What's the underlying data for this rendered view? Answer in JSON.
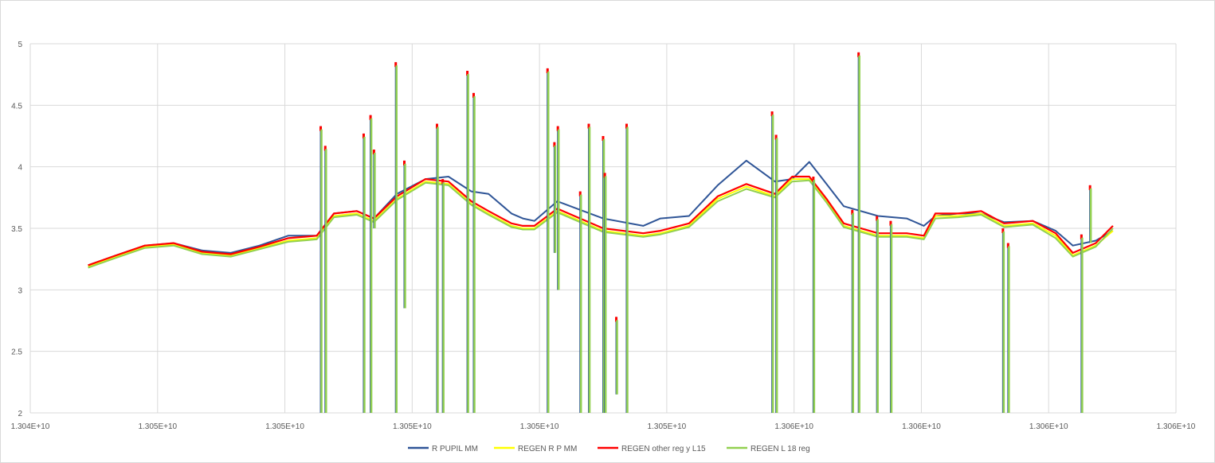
{
  "chart_data": {
    "type": "line",
    "title": "",
    "xlabel": "",
    "ylabel": "",
    "xlim": [
      13040000000,
      13060000000
    ],
    "ylim": [
      2,
      5
    ],
    "grid": true,
    "legend_position": "bottom",
    "x_tick_labels": [
      "1.304E+10",
      "1.305E+10",
      "1.305E+10",
      "1.305E+10",
      "1.305E+10",
      "1.305E+10",
      "1.306E+10",
      "1.306E+10",
      "1.306E+10",
      "1.306E+10"
    ],
    "y_tick_labels": [
      "2",
      "2.5",
      "3",
      "3.5",
      "4",
      "4.5",
      "5"
    ],
    "y_ticks": [
      2,
      2.5,
      3,
      3.5,
      4,
      4.5,
      5
    ],
    "colors": {
      "R PUPIL MM": "#2f5597",
      "REGEN R P MM": "#ffff00",
      "REGEN other reg y L15": "#ff0000",
      "REGEN L 18 reg": "#92d050"
    },
    "series": [
      {
        "name": "R PUPIL MM",
        "x": [
          13041010000,
          13041500000,
          13042000000,
          13042500000,
          13043000000,
          13043500000,
          13044000000,
          13044500000,
          13045000000,
          13045300000,
          13045700000,
          13046000000,
          13046400000,
          13046900000,
          13047300000,
          13047700000,
          13048000000,
          13048400000,
          13048600000,
          13048800000,
          13049200000,
          13049600000,
          13050000000,
          13050700000,
          13051000000,
          13051500000,
          13052000000,
          13052500000,
          13053000000,
          13053300000,
          13053600000,
          13053900000,
          13054200000,
          13054800000,
          13055300000,
          13055600000,
          13055800000,
          13056200000,
          13056600000,
          13057000000,
          13057500000,
          13057900000,
          13058200000,
          13058600000,
          13058900000
        ],
        "y": [
          3.2,
          3.28,
          3.36,
          3.38,
          3.32,
          3.3,
          3.36,
          3.44,
          3.44,
          3.62,
          3.64,
          3.58,
          3.78,
          3.9,
          3.92,
          3.8,
          3.78,
          3.62,
          3.58,
          3.56,
          3.72,
          3.65,
          3.58,
          3.52,
          3.58,
          3.6,
          3.85,
          4.05,
          3.88,
          3.9,
          4.04,
          3.86,
          3.68,
          3.6,
          3.58,
          3.52,
          3.6,
          3.62,
          3.62,
          3.55,
          3.56,
          3.48,
          3.36,
          3.4,
          3.48
        ]
      },
      {
        "name": "REGEN R P MM",
        "x": [
          13041010000,
          13041500000,
          13042000000,
          13042500000,
          13043000000,
          13043500000,
          13044000000,
          13044500000,
          13045000000,
          13045300000,
          13045700000,
          13046000000,
          13046400000,
          13046900000,
          13047300000,
          13047700000,
          13048000000,
          13048400000,
          13048600000,
          13048800000,
          13049200000,
          13049600000,
          13050000000,
          13050700000,
          13051000000,
          13051500000,
          13052000000,
          13052500000,
          13053000000,
          13053300000,
          13053600000,
          13053900000,
          13054200000,
          13054800000,
          13055300000,
          13055600000,
          13055800000,
          13056200000,
          13056600000,
          13057000000,
          13057500000,
          13057900000,
          13058200000,
          13058600000,
          13058900000
        ],
        "y": [
          3.19,
          3.27,
          3.35,
          3.37,
          3.3,
          3.28,
          3.34,
          3.4,
          3.42,
          3.6,
          3.62,
          3.56,
          3.74,
          3.88,
          3.86,
          3.7,
          3.62,
          3.52,
          3.5,
          3.5,
          3.64,
          3.56,
          3.48,
          3.44,
          3.46,
          3.52,
          3.74,
          3.84,
          3.76,
          3.9,
          3.9,
          3.72,
          3.52,
          3.44,
          3.44,
          3.42,
          3.6,
          3.6,
          3.62,
          3.52,
          3.54,
          3.44,
          3.28,
          3.36,
          3.48
        ]
      },
      {
        "name": "REGEN other reg y L15",
        "x": [
          13041010000,
          13041500000,
          13042000000,
          13042500000,
          13043000000,
          13043500000,
          13044000000,
          13044500000,
          13045000000,
          13045300000,
          13045700000,
          13046000000,
          13046400000,
          13046900000,
          13047300000,
          13047700000,
          13048000000,
          13048400000,
          13048600000,
          13048800000,
          13049200000,
          13049600000,
          13050000000,
          13050700000,
          13051000000,
          13051500000,
          13052000000,
          13052500000,
          13053000000,
          13053300000,
          13053600000,
          13053900000,
          13054200000,
          13054800000,
          13055300000,
          13055600000,
          13055800000,
          13056200000,
          13056600000,
          13057000000,
          13057500000,
          13057900000,
          13058200000,
          13058600000,
          13058900000
        ],
        "y": [
          3.2,
          3.28,
          3.36,
          3.38,
          3.31,
          3.29,
          3.35,
          3.42,
          3.44,
          3.62,
          3.64,
          3.58,
          3.76,
          3.9,
          3.88,
          3.72,
          3.64,
          3.54,
          3.52,
          3.52,
          3.66,
          3.58,
          3.5,
          3.46,
          3.48,
          3.54,
          3.76,
          3.86,
          3.78,
          3.92,
          3.92,
          3.74,
          3.54,
          3.46,
          3.46,
          3.44,
          3.62,
          3.62,
          3.64,
          3.54,
          3.56,
          3.46,
          3.3,
          3.38,
          3.52
        ]
      },
      {
        "name": "REGEN L 18 reg",
        "x": [
          13041010000,
          13041500000,
          13042000000,
          13042500000,
          13043000000,
          13043500000,
          13044000000,
          13044500000,
          13045000000,
          13045300000,
          13045700000,
          13046000000,
          13046400000,
          13046900000,
          13047300000,
          13047700000,
          13048000000,
          13048400000,
          13048600000,
          13048800000,
          13049200000,
          13049600000,
          13050000000,
          13050700000,
          13051000000,
          13051500000,
          13052000000,
          13052500000,
          13053000000,
          13053300000,
          13053600000,
          13053900000,
          13054200000,
          13054800000,
          13055300000,
          13055600000,
          13055800000,
          13056200000,
          13056600000,
          13057000000,
          13057500000,
          13057900000,
          13058200000,
          13058600000,
          13058900000
        ],
        "y": [
          3.18,
          3.26,
          3.34,
          3.36,
          3.29,
          3.27,
          3.33,
          3.39,
          3.41,
          3.59,
          3.61,
          3.55,
          3.73,
          3.87,
          3.85,
          3.69,
          3.61,
          3.51,
          3.49,
          3.49,
          3.63,
          3.55,
          3.47,
          3.43,
          3.45,
          3.51,
          3.72,
          3.82,
          3.75,
          3.88,
          3.89,
          3.71,
          3.51,
          3.43,
          3.43,
          3.41,
          3.58,
          3.59,
          3.61,
          3.51,
          3.53,
          3.42,
          3.27,
          3.35,
          3.5
        ]
      }
    ],
    "spikes": [
      {
        "x": 13045070000,
        "top": 4.33,
        "bottom": 2.0
      },
      {
        "x": 13045150000,
        "top": 4.17,
        "bottom": 2.0
      },
      {
        "x": 13045820000,
        "top": 4.27,
        "bottom": 2.0
      },
      {
        "x": 13045940000,
        "top": 4.42,
        "bottom": 2.0
      },
      {
        "x": 13046000000,
        "top": 4.14,
        "bottom": 3.5
      },
      {
        "x": 13046380000,
        "top": 4.85,
        "bottom": 2.0
      },
      {
        "x": 13046530000,
        "top": 4.05,
        "bottom": 2.85
      },
      {
        "x": 13047100000,
        "top": 4.35,
        "bottom": 2.0
      },
      {
        "x": 13047200000,
        "top": 3.9,
        "bottom": 2.0
      },
      {
        "x": 13047630000,
        "top": 4.78,
        "bottom": 2.0
      },
      {
        "x": 13047740000,
        "top": 4.6,
        "bottom": 2.0
      },
      {
        "x": 13049030000,
        "top": 4.8,
        "bottom": 2.0
      },
      {
        "x": 13049150000,
        "top": 4.2,
        "bottom": 3.3
      },
      {
        "x": 13049210000,
        "top": 4.33,
        "bottom": 3.0
      },
      {
        "x": 13049600000,
        "top": 3.8,
        "bottom": 2.0
      },
      {
        "x": 13049750000,
        "top": 4.35,
        "bottom": 2.0
      },
      {
        "x": 13050000000,
        "top": 4.25,
        "bottom": 2.0
      },
      {
        "x": 13050030000,
        "top": 3.95,
        "bottom": 2.0
      },
      {
        "x": 13050230000,
        "top": 2.78,
        "bottom": 2.15
      },
      {
        "x": 13050410000,
        "top": 4.35,
        "bottom": 2.0
      },
      {
        "x": 13052950000,
        "top": 4.45,
        "bottom": 2.0
      },
      {
        "x": 13053020000,
        "top": 4.26,
        "bottom": 2.0
      },
      {
        "x": 13053670000,
        "top": 3.92,
        "bottom": 2.0
      },
      {
        "x": 13054350000,
        "top": 3.65,
        "bottom": 2.0
      },
      {
        "x": 13054460000,
        "top": 4.93,
        "bottom": 2.0
      },
      {
        "x": 13054780000,
        "top": 3.6,
        "bottom": 2.0
      },
      {
        "x": 13055020000,
        "top": 3.56,
        "bottom": 2.0
      },
      {
        "x": 13056980000,
        "top": 3.5,
        "bottom": 2.0
      },
      {
        "x": 13057070000,
        "top": 3.38,
        "bottom": 2.0
      },
      {
        "x": 13058350000,
        "top": 3.45,
        "bottom": 2.0
      },
      {
        "x": 13058500000,
        "top": 3.85,
        "bottom": 3.38
      }
    ]
  }
}
